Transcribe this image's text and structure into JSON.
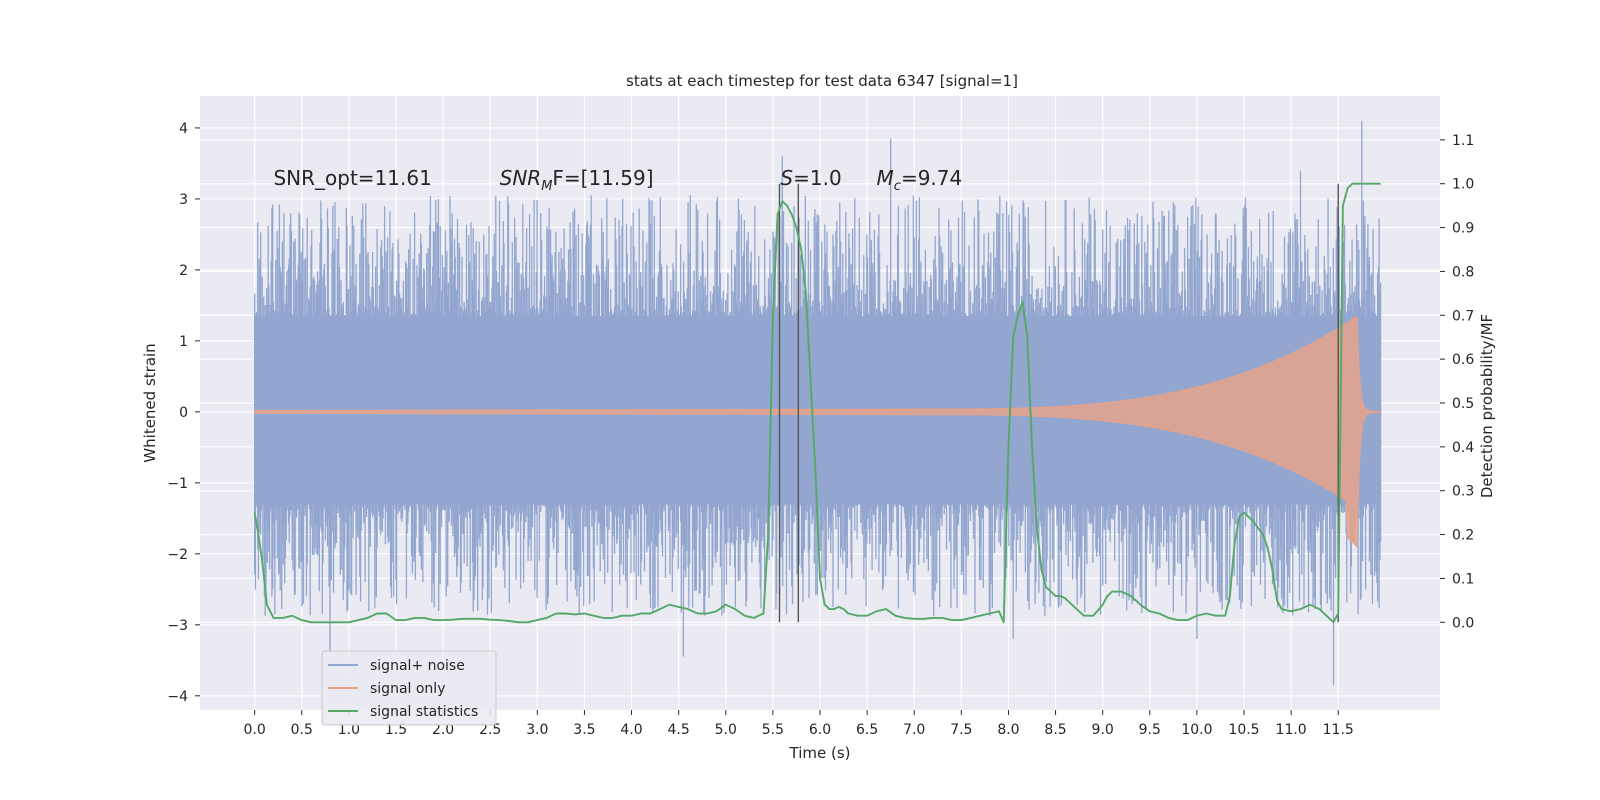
{
  "chart_data": {
    "type": "line",
    "title": "stats at each timestep for test data 6347 [signal=1]",
    "xlabel": "Time (s)",
    "ylabel": "Whitened strain",
    "ylabel_right": "Detection probability/MF",
    "xlim": [
      -0.58,
      12.58
    ],
    "ylim": [
      -4.2,
      4.45
    ],
    "ylim_right": [
      -0.2,
      1.2
    ],
    "x_ticks": [
      "0.0",
      "0.5",
      "1.0",
      "1.5",
      "2.0",
      "2.5",
      "3.0",
      "3.5",
      "4.0",
      "4.5",
      "5.0",
      "5.5",
      "6.0",
      "6.5",
      "7.0",
      "7.5",
      "8.0",
      "8.5",
      "9.0",
      "9.5",
      "10.0",
      "10.5",
      "11.0",
      "11.5"
    ],
    "y_ticks": [
      "4",
      "3",
      "2",
      "1",
      "0",
      "−1",
      "−2",
      "−3",
      "−4"
    ],
    "y_ticks_right": [
      "1.1",
      "1.0",
      "0.9",
      "0.8",
      "0.7",
      "0.6",
      "0.5",
      "0.4",
      "0.3",
      "0.2",
      "0.1",
      "0.0"
    ],
    "grid": true,
    "legend_position": "lower-left",
    "annotations": [
      {
        "text": "SNR_opt=11.61",
        "x": 0.2
      },
      {
        "text": "SNR",
        "sub": "M",
        "suffix": "F=[11.59]",
        "x": 2.6
      },
      {
        "text": "S",
        "suffix": "=1.0",
        "x": 5.58
      },
      {
        "text": "M",
        "sub": "c",
        "suffix": "=9.74",
        "x": 6.6
      }
    ],
    "vertical_markers": [
      5.57,
      5.77,
      11.5
    ],
    "series": [
      {
        "name": "signal+ noise",
        "color": "#92a6cf",
        "t_range": [
          0.0,
          11.95
        ],
        "envelope_dense": [
          -1.3,
          1.35
        ],
        "spike_peak_max": 4.1,
        "spike_peak_min": -3.85
      },
      {
        "name": "signal only",
        "color": "#e5a38b",
        "t_range": [
          0.0,
          11.95
        ],
        "chirp_start": 7.0,
        "merger_time": 11.7,
        "peak_amplitude": 1.35,
        "trough_amplitude": -1.9
      },
      {
        "name": "signal statistics",
        "color": "#55a868",
        "axis": "right",
        "x": [
          0.0,
          0.04,
          0.08,
          0.13,
          0.2,
          0.3,
          0.4,
          0.5,
          0.6,
          0.7,
          0.8,
          0.9,
          1.0,
          1.1,
          1.2,
          1.3,
          1.4,
          1.5,
          1.6,
          1.7,
          1.8,
          1.9,
          2.0,
          2.1,
          2.2,
          2.3,
          2.4,
          2.5,
          2.6,
          2.7,
          2.8,
          2.9,
          3.0,
          3.1,
          3.2,
          3.3,
          3.4,
          3.5,
          3.6,
          3.7,
          3.8,
          3.9,
          4.0,
          4.1,
          4.2,
          4.3,
          4.4,
          4.5,
          4.6,
          4.7,
          4.8,
          4.9,
          5.0,
          5.1,
          5.2,
          5.3,
          5.4,
          5.45,
          5.5,
          5.55,
          5.6,
          5.65,
          5.7,
          5.75,
          5.8,
          5.85,
          5.9,
          5.95,
          6.0,
          6.05,
          6.1,
          6.15,
          6.2,
          6.25,
          6.3,
          6.4,
          6.5,
          6.6,
          6.7,
          6.8,
          6.9,
          7.0,
          7.1,
          7.2,
          7.3,
          7.4,
          7.5,
          7.6,
          7.7,
          7.8,
          7.9,
          7.95,
          8.0,
          8.05,
          8.1,
          8.15,
          8.2,
          8.25,
          8.3,
          8.35,
          8.4,
          8.45,
          8.5,
          8.55,
          8.6,
          8.7,
          8.8,
          8.9,
          9.0,
          9.05,
          9.1,
          9.2,
          9.3,
          9.4,
          9.5,
          9.6,
          9.7,
          9.8,
          9.9,
          10.0,
          10.1,
          10.2,
          10.3,
          10.35,
          10.4,
          10.45,
          10.5,
          10.55,
          10.6,
          10.7,
          10.75,
          10.8,
          10.85,
          10.9,
          11.0,
          11.1,
          11.2,
          11.3,
          11.4,
          11.45,
          11.5,
          11.55,
          11.6,
          11.65,
          11.7,
          11.8,
          11.9,
          11.95
        ],
        "values": [
          0.25,
          0.2,
          0.14,
          0.04,
          0.01,
          0.01,
          0.015,
          0.005,
          0.0,
          0.0,
          0.0,
          0.0,
          0.0,
          0.005,
          0.01,
          0.02,
          0.02,
          0.005,
          0.005,
          0.01,
          0.01,
          0.005,
          0.005,
          0.006,
          0.008,
          0.008,
          0.008,
          0.006,
          0.005,
          0.003,
          0.0,
          0.0,
          0.005,
          0.01,
          0.02,
          0.02,
          0.018,
          0.02,
          0.015,
          0.01,
          0.01,
          0.015,
          0.015,
          0.02,
          0.02,
          0.03,
          0.04,
          0.035,
          0.03,
          0.02,
          0.02,
          0.025,
          0.04,
          0.03,
          0.015,
          0.01,
          0.02,
          0.2,
          0.7,
          0.93,
          0.96,
          0.95,
          0.93,
          0.9,
          0.85,
          0.75,
          0.55,
          0.35,
          0.1,
          0.04,
          0.03,
          0.03,
          0.035,
          0.03,
          0.02,
          0.015,
          0.015,
          0.025,
          0.03,
          0.015,
          0.01,
          0.008,
          0.008,
          0.01,
          0.01,
          0.005,
          0.005,
          0.01,
          0.015,
          0.02,
          0.025,
          0.0,
          0.4,
          0.65,
          0.7,
          0.73,
          0.65,
          0.4,
          0.22,
          0.12,
          0.08,
          0.07,
          0.06,
          0.06,
          0.055,
          0.035,
          0.015,
          0.015,
          0.04,
          0.06,
          0.07,
          0.07,
          0.06,
          0.04,
          0.025,
          0.02,
          0.01,
          0.005,
          0.005,
          0.015,
          0.02,
          0.015,
          0.015,
          0.06,
          0.18,
          0.24,
          0.25,
          0.24,
          0.23,
          0.2,
          0.17,
          0.12,
          0.05,
          0.03,
          0.025,
          0.03,
          0.04,
          0.03,
          0.01,
          0.0,
          0.02,
          0.95,
          0.99,
          1.0,
          1.0,
          1.0,
          1.0,
          1.0
        ]
      }
    ]
  }
}
